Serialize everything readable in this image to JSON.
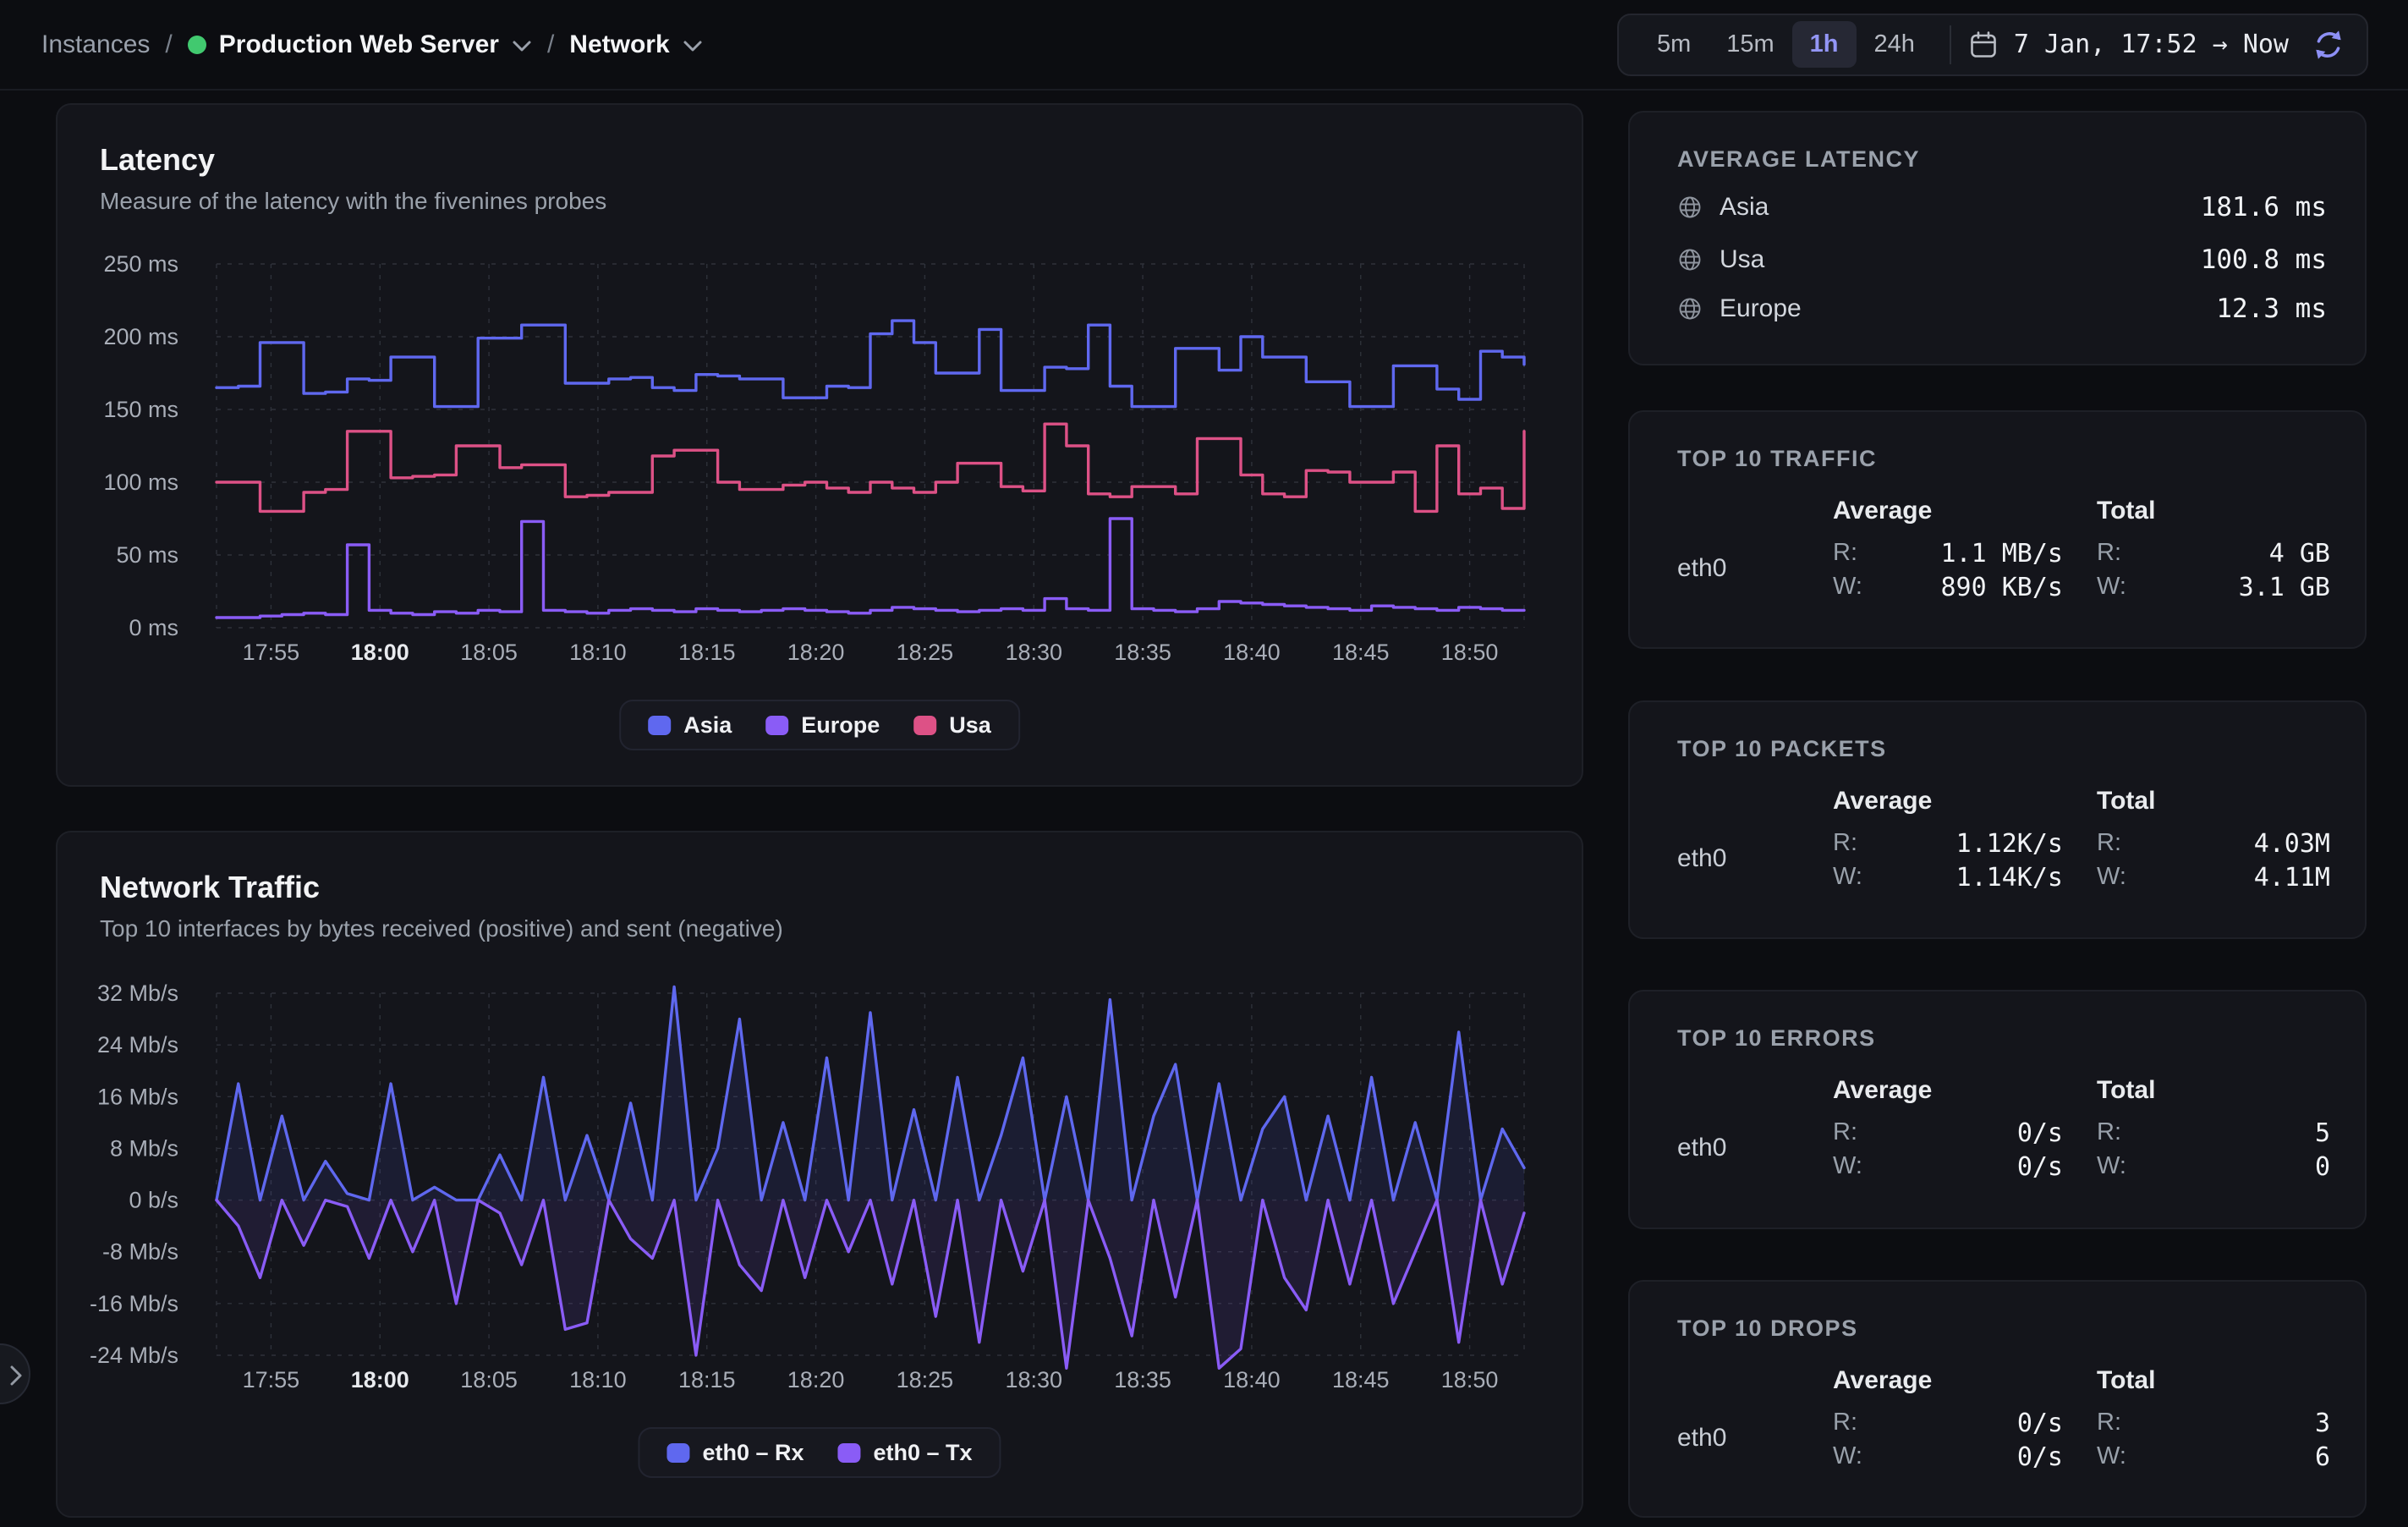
{
  "breadcrumb": {
    "instances": "Instances",
    "separator": "/",
    "instance_name": "Production Web Server",
    "section": "Network"
  },
  "time_controls": {
    "ranges": [
      "5m",
      "15m",
      "1h",
      "24h"
    ],
    "selected": "1h",
    "date_range": "7 Jan, 17:52 → Now"
  },
  "latency_card": {
    "title": "Latency",
    "subtitle": "Measure of the latency with the fivenines probes"
  },
  "traffic_card": {
    "title": "Network Traffic",
    "subtitle": "Top 10 interfaces by bytes received (positive) and sent (negative)"
  },
  "avg_latency_panel": {
    "title": "AVERAGE LATENCY",
    "rows": [
      {
        "name": "Asia",
        "value": "181.6 ms"
      },
      {
        "name": "Usa",
        "value": "100.8 ms"
      },
      {
        "name": "Europe",
        "value": "12.3 ms"
      }
    ]
  },
  "rw": {
    "r": "R:",
    "w": "W:"
  },
  "stat_panels": [
    {
      "title": "TOP 10 TRAFFIC",
      "avg_header": "Average",
      "total_header": "Total",
      "rows": [
        {
          "name": "eth0",
          "avg_r": "1.1 MB/s",
          "avg_w": "890 KB/s",
          "total_r": "4 GB",
          "total_w": "3.1 GB"
        }
      ]
    },
    {
      "title": "TOP 10 PACKETS",
      "avg_header": "Average",
      "total_header": "Total",
      "rows": [
        {
          "name": "eth0",
          "avg_r": "1.12K/s",
          "avg_w": "1.14K/s",
          "total_r": "4.03M",
          "total_w": "4.11M"
        }
      ]
    },
    {
      "title": "TOP 10 ERRORS",
      "avg_header": "Average",
      "total_header": "Total",
      "rows": [
        {
          "name": "eth0",
          "avg_r": "0/s",
          "avg_w": "0/s",
          "total_r": "5",
          "total_w": "0"
        }
      ]
    },
    {
      "title": "TOP 10 DROPS",
      "avg_header": "Average",
      "total_header": "Total",
      "rows": [
        {
          "name": "eth0",
          "avg_r": "0/s",
          "avg_w": "0/s",
          "total_r": "3",
          "total_w": "6"
        }
      ]
    }
  ],
  "colors": {
    "accent_selected": "#9396f6",
    "status_dot_green": "#41c96f",
    "refresh_icon": "#8d90f5",
    "card_bg": "#14151b",
    "page_bg": "#0c0d11",
    "grid": "#2e313a"
  },
  "chart_data": [
    {
      "type": "line",
      "title": "Latency",
      "step": true,
      "fill": false,
      "unit": "ms",
      "ylim": [
        0,
        250
      ],
      "x_domain": [
        0.5,
        60.5
      ],
      "sample_start": 0.5,
      "sample_interval": 1,
      "x_start_time": "17:52",
      "y_ticks": [
        {
          "v": 250,
          "label": "250 ms"
        },
        {
          "v": 200,
          "label": "200 ms"
        },
        {
          "v": 150,
          "label": "150 ms"
        },
        {
          "v": 100,
          "label": "100 ms"
        },
        {
          "v": 50,
          "label": "50 ms"
        },
        {
          "v": 0,
          "label": "0 ms"
        }
      ],
      "x_tick_minutes": [
        3,
        8,
        13,
        18,
        23,
        28,
        33,
        38,
        43,
        48,
        53,
        58
      ],
      "x_tick_labels": [
        "17:55",
        "18:00",
        "18:05",
        "18:10",
        "18:15",
        "18:20",
        "18:25",
        "18:30",
        "18:35",
        "18:40",
        "18:45",
        "18:50"
      ],
      "x_tick_bold": "18:00",
      "legend_position": "bottom",
      "series": [
        {
          "name": "Asia",
          "color": "#5f68ef",
          "values": [
            165,
            166,
            196,
            196,
            161,
            162,
            171,
            170,
            186,
            186,
            152,
            152,
            199,
            199,
            208,
            208,
            168,
            168,
            171,
            172,
            165,
            163,
            174,
            173,
            171,
            171,
            158,
            158,
            166,
            165,
            202,
            211,
            196,
            175,
            175,
            205,
            163,
            163,
            179,
            178,
            208,
            166,
            152,
            152,
            192,
            192,
            177,
            200,
            186,
            186,
            169,
            169,
            152,
            152,
            180,
            180,
            164,
            157,
            190,
            186,
            181
          ]
        },
        {
          "name": "Europe",
          "color": "#8a5cf6",
          "values": [
            7,
            7,
            8,
            9,
            10,
            9,
            57,
            12,
            10,
            9,
            11,
            10,
            12,
            11,
            73,
            12,
            11,
            10,
            12,
            13,
            12,
            11,
            13,
            12,
            11,
            12,
            13,
            12,
            11,
            10,
            12,
            14,
            13,
            12,
            11,
            12,
            13,
            12,
            20,
            13,
            12,
            75,
            13,
            12,
            11,
            13,
            18,
            17,
            16,
            15,
            14,
            13,
            12,
            15,
            14,
            13,
            12,
            14,
            13,
            12,
            12
          ]
        },
        {
          "name": "Usa",
          "color": "#dd5186",
          "values": [
            100,
            100,
            80,
            80,
            93,
            95,
            135,
            135,
            103,
            104,
            105,
            125,
            125,
            110,
            112,
            112,
            90,
            91,
            93,
            93,
            118,
            122,
            122,
            100,
            95,
            95,
            98,
            100,
            96,
            93,
            100,
            96,
            93,
            100,
            113,
            113,
            97,
            94,
            140,
            125,
            92,
            90,
            97,
            97,
            92,
            130,
            130,
            105,
            92,
            90,
            108,
            107,
            100,
            100,
            107,
            80,
            125,
            92,
            96,
            82,
            135
          ]
        }
      ]
    },
    {
      "type": "line",
      "title": "Network Traffic",
      "step": false,
      "fill": true,
      "unit": "Mb/s",
      "ylim": [
        -24,
        32
      ],
      "x_domain": [
        0.5,
        60.5
      ],
      "sample_start": 0.5,
      "sample_interval": 1,
      "x_start_time": "17:52",
      "y_ticks": [
        {
          "v": 32,
          "label": "32 Mb/s"
        },
        {
          "v": 24,
          "label": "24 Mb/s"
        },
        {
          "v": 16,
          "label": "16 Mb/s"
        },
        {
          "v": 8,
          "label": "8 Mb/s"
        },
        {
          "v": 0,
          "label": "0 b/s"
        },
        {
          "v": -8,
          "label": "-8 Mb/s"
        },
        {
          "v": -16,
          "label": "-16 Mb/s"
        },
        {
          "v": -24,
          "label": "-24 Mb/s"
        }
      ],
      "x_tick_minutes": [
        3,
        8,
        13,
        18,
        23,
        28,
        33,
        38,
        43,
        48,
        53,
        58
      ],
      "x_tick_labels": [
        "17:55",
        "18:00",
        "18:05",
        "18:10",
        "18:15",
        "18:20",
        "18:25",
        "18:30",
        "18:35",
        "18:40",
        "18:45",
        "18:50"
      ],
      "x_tick_bold": "18:00",
      "legend_position": "bottom",
      "series": [
        {
          "name": "eth0 – Rx",
          "color": "#5f68ef",
          "values": [
            0,
            18,
            0,
            13,
            0,
            6,
            1,
            0,
            18,
            0,
            2,
            0,
            0,
            7,
            0,
            19,
            0,
            10,
            0,
            15,
            0,
            33,
            0,
            8,
            28,
            0,
            12,
            0,
            22,
            0,
            29,
            0,
            14,
            0,
            19,
            0,
            10,
            22,
            0,
            16,
            0,
            31,
            0,
            13,
            21,
            0,
            18,
            0,
            11,
            16,
            0,
            13,
            0,
            19,
            0,
            12,
            0,
            26,
            0,
            11,
            5
          ]
        },
        {
          "name": "eth0 – Tx",
          "color": "#8a5cf6",
          "values": [
            0,
            -4,
            -12,
            0,
            -7,
            0,
            -1,
            -9,
            0,
            -8,
            0,
            -16,
            0,
            -2,
            -10,
            0,
            -20,
            -19,
            0,
            -6,
            -9,
            0,
            -24,
            0,
            -10,
            -14,
            0,
            -12,
            0,
            -8,
            0,
            -13,
            0,
            -18,
            0,
            -22,
            0,
            -11,
            0,
            -26,
            0,
            -9,
            -21,
            0,
            -15,
            0,
            -26,
            -23,
            0,
            -12,
            -17,
            0,
            -13,
            0,
            -16,
            -8,
            0,
            -22,
            0,
            -13,
            -2
          ]
        }
      ]
    }
  ]
}
